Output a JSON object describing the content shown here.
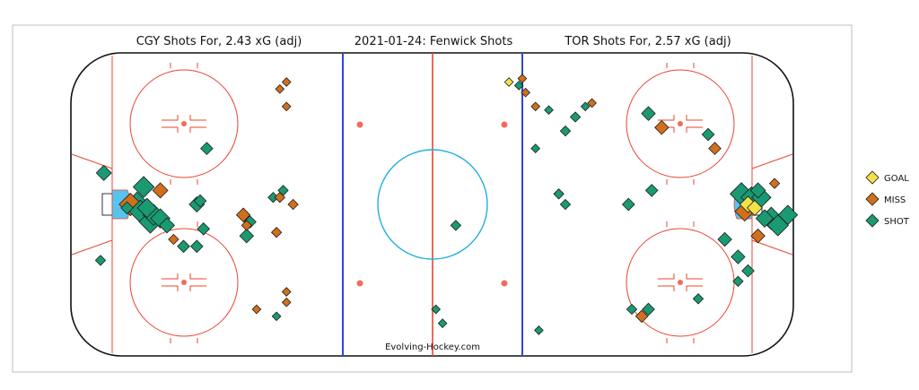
{
  "chart_data": {
    "type": "scatter",
    "titles": {
      "left": "CGY Shots For, 2.43 xG (adj)",
      "center": "2021-01-24:  Fenwick Shots",
      "right": "TOR Shots For, 2.57 xG (adj)"
    },
    "credit": "Evolving-Hockey.com",
    "legend_position": "right",
    "legend": [
      {
        "key": "GOAL",
        "label": "GOAL",
        "color": "#f2e14a"
      },
      {
        "key": "MISS",
        "label": "MISS",
        "color": "#d1701c"
      },
      {
        "key": "SHOT",
        "label": "SHOT",
        "color": "#1a9a72"
      }
    ],
    "xlim": [
      -100,
      100
    ],
    "ylim": [
      -42.5,
      42.5
    ],
    "series": [
      {
        "name": "CGY",
        "points": [
          {
            "x": -99,
            "y": 9,
            "type": "SHOT",
            "xg": 0.04
          },
          {
            "x": -87,
            "y": 5,
            "type": "SHOT",
            "xg": 0.1
          },
          {
            "x": -91,
            "y": 0,
            "type": "MISS",
            "xg": 0.12
          },
          {
            "x": -89,
            "y": 0,
            "type": "SHOT",
            "xg": 0.15
          },
          {
            "x": -88,
            "y": -2,
            "type": "SHOT",
            "xg": 0.12
          },
          {
            "x": -86,
            "y": -1,
            "type": "SHOT",
            "xg": 0.08
          },
          {
            "x": -84,
            "y": -3,
            "type": "SHOT",
            "xg": 0.1
          },
          {
            "x": -85,
            "y": -5,
            "type": "SHOT",
            "xg": 0.12
          },
          {
            "x": -82,
            "y": -4,
            "type": "SHOT",
            "xg": 0.08
          },
          {
            "x": -80,
            "y": -6,
            "type": "SHOT",
            "xg": 0.04
          },
          {
            "x": -92,
            "y": -1,
            "type": "SHOT",
            "xg": 0.02
          },
          {
            "x": -82,
            "y": 4,
            "type": "MISS",
            "xg": 0.04
          },
          {
            "x": -71,
            "y": 0,
            "type": "SHOT",
            "xg": 0.04
          },
          {
            "x": -70,
            "y": 1,
            "type": "SHOT",
            "xg": 0.02
          },
          {
            "x": -68,
            "y": 16,
            "type": "SHOT",
            "xg": 0.02
          },
          {
            "x": -69,
            "y": -7,
            "type": "SHOT",
            "xg": 0.02
          },
          {
            "x": -75,
            "y": -12,
            "type": "SHOT",
            "xg": 0.02
          },
          {
            "x": -71,
            "y": -12,
            "type": "SHOT",
            "xg": 0.02
          },
          {
            "x": -78,
            "y": -10,
            "type": "MISS",
            "xg": 0.01
          },
          {
            "x": -100,
            "y": -16,
            "type": "SHOT",
            "xg": 0.01
          },
          {
            "x": -57,
            "y": -3,
            "type": "MISS",
            "xg": 0.03
          },
          {
            "x": -56,
            "y": -6,
            "type": "MISS",
            "xg": 0.01
          },
          {
            "x": -55,
            "y": -5,
            "type": "SHOT",
            "xg": 0.02
          },
          {
            "x": -56,
            "y": -9,
            "type": "SHOT",
            "xg": 0.03
          },
          {
            "x": -48,
            "y": 2,
            "type": "SHOT",
            "xg": 0.01
          },
          {
            "x": -46,
            "y": 2,
            "type": "MISS",
            "xg": 0.01
          },
          {
            "x": -45,
            "y": 4,
            "type": "SHOT",
            "xg": 0.01
          },
          {
            "x": -42,
            "y": 0,
            "type": "MISS",
            "xg": 0.01
          },
          {
            "x": -47,
            "y": -8,
            "type": "MISS",
            "xg": 0.01
          },
          {
            "x": -46,
            "y": 33,
            "type": "MISS",
            "xg": 0.005
          },
          {
            "x": -44,
            "y": 35,
            "type": "MISS",
            "xg": 0.005
          },
          {
            "x": -44,
            "y": 28,
            "type": "MISS",
            "xg": 0.005
          },
          {
            "x": -44,
            "y": -25,
            "type": "MISS",
            "xg": 0.005
          },
          {
            "x": -44,
            "y": -28,
            "type": "MISS",
            "xg": 0.005
          },
          {
            "x": -53,
            "y": -30,
            "type": "MISS",
            "xg": 0.005
          },
          {
            "x": -47,
            "y": -32,
            "type": "SHOT",
            "xg": 0.005
          }
        ]
      },
      {
        "name": "TOR",
        "points": [
          {
            "x": 83,
            "y": 20,
            "type": "SHOT",
            "xg": 0.02
          },
          {
            "x": 85,
            "y": 16,
            "type": "MISS",
            "xg": 0.02
          },
          {
            "x": 93,
            "y": 3,
            "type": "SHOT",
            "xg": 0.12
          },
          {
            "x": 96,
            "y": 2,
            "type": "SHOT",
            "xg": 0.1
          },
          {
            "x": 95,
            "y": 0,
            "type": "GOAL",
            "xg": 0.05
          },
          {
            "x": 97,
            "y": -1,
            "type": "GOAL",
            "xg": 0.04
          },
          {
            "x": 94,
            "y": -2,
            "type": "MISS",
            "xg": 0.08
          },
          {
            "x": 99,
            "y": 2,
            "type": "SHOT",
            "xg": 0.08
          },
          {
            "x": 102,
            "y": -4,
            "type": "SHOT",
            "xg": 0.12
          },
          {
            "x": 104,
            "y": -6,
            "type": "SHOT",
            "xg": 0.1
          },
          {
            "x": 100,
            "y": -4,
            "type": "SHOT",
            "xg": 0.06
          },
          {
            "x": 107,
            "y": -3,
            "type": "SHOT",
            "xg": 0.08
          },
          {
            "x": 98,
            "y": 4,
            "type": "SHOT",
            "xg": 0.04
          },
          {
            "x": 103,
            "y": 6,
            "type": "MISS",
            "xg": 0.01
          },
          {
            "x": 88,
            "y": -10,
            "type": "SHOT",
            "xg": 0.03
          },
          {
            "x": 98,
            "y": -9,
            "type": "MISS",
            "xg": 0.03
          },
          {
            "x": 92,
            "y": -15,
            "type": "SHOT",
            "xg": 0.03
          },
          {
            "x": 95,
            "y": -19,
            "type": "SHOT",
            "xg": 0.02
          },
          {
            "x": 92,
            "y": -22,
            "type": "SHOT",
            "xg": 0.01
          },
          {
            "x": 80,
            "y": -27,
            "type": "SHOT",
            "xg": 0.01
          },
          {
            "x": 65,
            "y": -30,
            "type": "SHOT",
            "xg": 0.02
          },
          {
            "x": 63,
            "y": -32,
            "type": "MISS",
            "xg": 0.02
          },
          {
            "x": 60,
            "y": -30,
            "type": "SHOT",
            "xg": 0.01
          },
          {
            "x": 66,
            "y": 4,
            "type": "SHOT",
            "xg": 0.02
          },
          {
            "x": 59,
            "y": 0,
            "type": "SHOT",
            "xg": 0.02
          },
          {
            "x": 40,
            "y": 0,
            "type": "SHOT",
            "xg": 0.01
          },
          {
            "x": 38,
            "y": 3,
            "type": "SHOT",
            "xg": 0.01
          },
          {
            "x": 69,
            "y": 22,
            "type": "MISS",
            "xg": 0.03
          },
          {
            "x": 65,
            "y": 26,
            "type": "SHOT",
            "xg": 0.03
          },
          {
            "x": 7,
            "y": -6,
            "type": "SHOT",
            "xg": 0.01
          },
          {
            "x": 3,
            "y": -34,
            "type": "SHOT",
            "xg": 0.005
          },
          {
            "x": 43,
            "y": 25,
            "type": "SHOT",
            "xg": 0.01
          },
          {
            "x": 40,
            "y": 21,
            "type": "SHOT",
            "xg": 0.01
          },
          {
            "x": 31,
            "y": 28,
            "type": "MISS",
            "xg": 0.005
          },
          {
            "x": 35,
            "y": 27,
            "type": "SHOT",
            "xg": 0.005
          },
          {
            "x": 46,
            "y": 28,
            "type": "SHOT",
            "xg": 0.005
          },
          {
            "x": 48,
            "y": 29,
            "type": "MISS",
            "xg": 0.005
          },
          {
            "x": 23,
            "y": 35,
            "type": "GOAL",
            "xg": 0.005
          },
          {
            "x": 26,
            "y": 34,
            "type": "SHOT",
            "xg": 0.005
          },
          {
            "x": 28,
            "y": 32,
            "type": "MISS",
            "xg": 0.005
          },
          {
            "x": 27,
            "y": 36,
            "type": "MISS",
            "xg": 0.005
          },
          {
            "x": 31,
            "y": 16,
            "type": "SHOT",
            "xg": 0.005
          },
          {
            "x": 1,
            "y": -30,
            "type": "SHOT",
            "xg": 0.005
          },
          {
            "x": 32,
            "y": -36,
            "type": "SHOT",
            "xg": 0.005
          }
        ]
      }
    ]
  }
}
